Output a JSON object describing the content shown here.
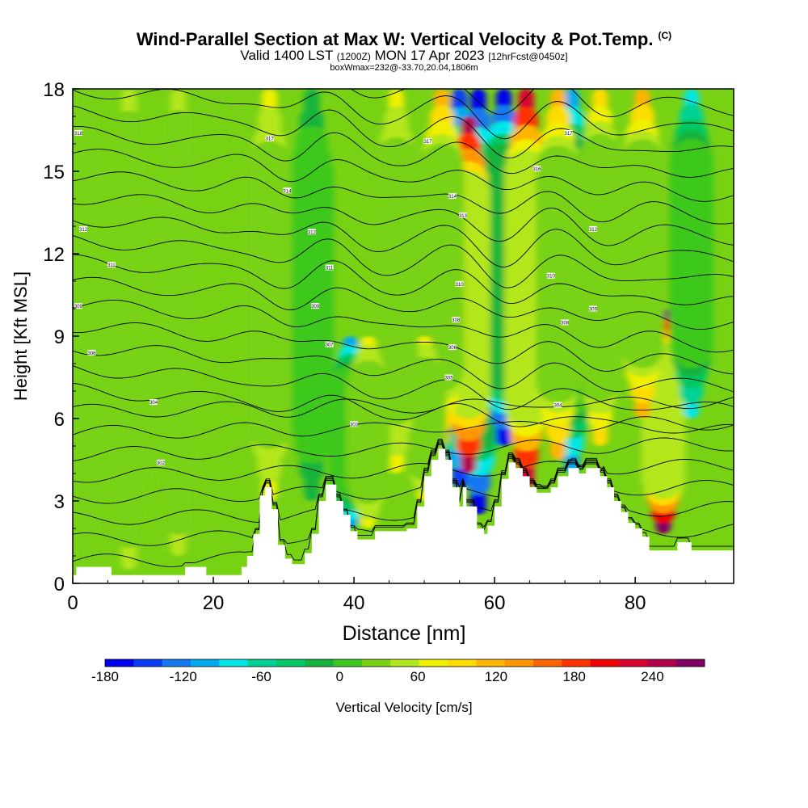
{
  "header": {
    "title": "Wind-Parallel Section at Max W: Vertical Velocity & Pot.Temp.",
    "copyright": "(C)",
    "valid_prefix": "Valid 1400 LST",
    "valid_utc": "(1200Z)",
    "valid_date": "MON 17 Apr 2023",
    "forecast": "[12hrFcst@0450z]",
    "box_info": "boxWmax=232@-33.70,20.04,1806m"
  },
  "chart_data": {
    "type": "heatmap",
    "title": "Wind-Parallel Section at Max W: Vertical Velocity & Pot.Temp.",
    "xlabel": "Distance [nm]",
    "ylabel": "Height [Kft MSL]",
    "xlim": [
      0,
      94
    ],
    "ylim": [
      0,
      18
    ],
    "xticks": [
      0,
      20,
      40,
      60,
      80
    ],
    "yticks": [
      0,
      3,
      6,
      9,
      12,
      15,
      18
    ],
    "colorbar": {
      "label": "Vertical Velocity [cm/s]",
      "min": -180,
      "max": 260,
      "step": 20,
      "tick_values": [
        -180,
        -120,
        -60,
        0,
        60,
        120,
        180,
        240
      ],
      "colors": [
        "#0000f0",
        "#0a3cf5",
        "#1478f0",
        "#00aaf0",
        "#00e6e6",
        "#00d296",
        "#00c864",
        "#14b43c",
        "#3cc81e",
        "#78d214",
        "#b4e61e",
        "#f0f000",
        "#ffdc00",
        "#ffb400",
        "#ff9600",
        "#ff6400",
        "#ff3200",
        "#f00000",
        "#dc0032",
        "#b4004b",
        "#820064"
      ]
    },
    "terrain": [
      [
        0,
        0.3
      ],
      [
        0.5,
        0.3
      ],
      [
        0.5,
        0.6
      ],
      [
        5.5,
        0.6
      ],
      [
        5.5,
        0.3
      ],
      [
        16,
        0.3
      ],
      [
        16,
        0.6
      ],
      [
        19,
        0.6
      ],
      [
        19,
        0.3
      ],
      [
        24,
        0.3
      ],
      [
        24,
        0.6
      ],
      [
        24.8,
        0.6
      ],
      [
        24.8,
        1.0
      ],
      [
        25.7,
        1.0
      ],
      [
        25.7,
        1.8
      ],
      [
        26.6,
        1.8
      ],
      [
        26.6,
        3.2
      ],
      [
        27.4,
        3.2
      ],
      [
        27.4,
        3.5
      ],
      [
        28.3,
        3.5
      ],
      [
        28.3,
        2.7
      ],
      [
        29.2,
        2.7
      ],
      [
        29.2,
        1.4
      ],
      [
        30.2,
        1.4
      ],
      [
        30.2,
        0.9
      ],
      [
        31.2,
        0.9
      ],
      [
        31.2,
        0.7
      ],
      [
        33,
        0.7
      ],
      [
        33,
        1.1
      ],
      [
        34,
        1.1
      ],
      [
        34,
        1.8
      ],
      [
        35,
        1.8
      ],
      [
        35,
        3.0
      ],
      [
        36,
        3.0
      ],
      [
        36,
        3.6
      ],
      [
        37.5,
        3.6
      ],
      [
        37.5,
        3.0
      ],
      [
        38.5,
        3.0
      ],
      [
        38.5,
        2.5
      ],
      [
        39.5,
        2.5
      ],
      [
        39.5,
        1.9
      ],
      [
        40.5,
        1.9
      ],
      [
        40.5,
        1.6
      ],
      [
        43,
        1.6
      ],
      [
        43,
        1.9
      ],
      [
        47.5,
        1.9
      ],
      [
        47.5,
        2.0
      ],
      [
        49,
        2.0
      ],
      [
        49,
        2.8
      ],
      [
        50,
        2.8
      ],
      [
        50,
        3.9
      ],
      [
        51,
        3.9
      ],
      [
        51,
        4.5
      ],
      [
        52,
        4.5
      ],
      [
        52,
        4.9
      ],
      [
        53,
        4.9
      ],
      [
        53,
        4.5
      ],
      [
        54,
        4.5
      ],
      [
        54,
        3.5
      ],
      [
        55,
        3.5
      ],
      [
        55,
        2.8
      ],
      [
        55.5,
        2.8
      ],
      [
        55.5,
        3.5
      ],
      [
        56,
        3.5
      ],
      [
        56,
        2.8
      ],
      [
        57.5,
        2.8
      ],
      [
        57.5,
        2.0
      ],
      [
        58.5,
        2.0
      ],
      [
        58.5,
        1.8
      ],
      [
        59,
        1.8
      ],
      [
        59,
        2.1
      ],
      [
        60,
        2.1
      ],
      [
        60,
        2.8
      ],
      [
        61,
        2.8
      ],
      [
        61,
        3.8
      ],
      [
        62,
        3.8
      ],
      [
        62,
        4.4
      ],
      [
        63,
        4.4
      ],
      [
        63,
        4.2
      ],
      [
        64,
        4.2
      ],
      [
        64,
        3.9
      ],
      [
        65,
        3.9
      ],
      [
        65,
        3.5
      ],
      [
        66,
        3.5
      ],
      [
        66,
        3.3
      ],
      [
        68,
        3.3
      ],
      [
        68,
        3.5
      ],
      [
        69,
        3.5
      ],
      [
        69,
        3.9
      ],
      [
        70.5,
        3.9
      ],
      [
        70.5,
        4.2
      ],
      [
        72,
        4.2
      ],
      [
        72,
        4.0
      ],
      [
        73,
        4.0
      ],
      [
        73,
        4.2
      ],
      [
        75,
        4.2
      ],
      [
        75,
        3.9
      ],
      [
        76,
        3.9
      ],
      [
        76,
        3.5
      ],
      [
        77,
        3.5
      ],
      [
        77,
        3.0
      ],
      [
        78,
        3.0
      ],
      [
        78,
        2.6
      ],
      [
        79,
        2.6
      ],
      [
        79,
        2.2
      ],
      [
        80,
        2.2
      ],
      [
        80,
        2.0
      ],
      [
        81,
        2.0
      ],
      [
        81,
        1.7
      ],
      [
        82,
        1.7
      ],
      [
        82,
        1.2
      ],
      [
        86,
        1.2
      ],
      [
        86,
        1.5
      ],
      [
        88,
        1.5
      ],
      [
        88,
        1.2
      ],
      [
        94,
        1.2
      ]
    ],
    "w_features": [
      {
        "x": 55,
        "z0": 3.5,
        "z1": 18,
        "w": -150
      },
      {
        "x": 57.7,
        "z0": 2.5,
        "z1": 18,
        "w": -180
      },
      {
        "x": 61.3,
        "z0": 5,
        "z1": 18,
        "w": -170
      },
      {
        "x": 56.3,
        "z0": 4,
        "z1": 17,
        "w": 200
      },
      {
        "x": 64.5,
        "z0": 3.5,
        "z1": 18,
        "w": 190
      },
      {
        "x": 84,
        "z0": 1.8,
        "z1": 10,
        "w": 232
      },
      {
        "x": 39.5,
        "z0": 2,
        "z1": 9,
        "w": -110
      },
      {
        "x": 71,
        "z0": 4,
        "z1": 18,
        "w": -120
      },
      {
        "x": 88,
        "z0": 6,
        "z1": 18,
        "w": -100
      },
      {
        "x": 52.5,
        "z0": 5,
        "z1": 18,
        "w": 80
      },
      {
        "x": 69,
        "z0": 4.5,
        "z1": 18,
        "w": 90
      },
      {
        "x": 81,
        "z0": 6,
        "z1": 18,
        "w": 80
      },
      {
        "x": 50,
        "z0": 3,
        "z1": 9,
        "w": 50
      },
      {
        "x": 46,
        "z0": 4,
        "z1": 18,
        "w": 40
      },
      {
        "x": 75,
        "z0": 5,
        "z1": 18,
        "w": 60
      },
      {
        "x": 34,
        "z0": 3,
        "z1": 18,
        "w": -40
      },
      {
        "x": 42,
        "z0": 2,
        "z1": 9,
        "w": 45
      },
      {
        "x": 28,
        "z0": 3,
        "z1": 18,
        "w": 50
      },
      {
        "x": 15,
        "z0": 1,
        "z1": 18,
        "w": 20
      },
      {
        "x": 8,
        "z0": 0.5,
        "z1": 18,
        "w": 20
      },
      {
        "x": 2,
        "z0": 0.5,
        "z1": 18,
        "w": 15
      }
    ],
    "theta_contour_labels": [
      {
        "x": 0.8,
        "z": 16.4,
        "text": "318"
      },
      {
        "x": 28,
        "z": 16.2,
        "text": "317"
      },
      {
        "x": 50.5,
        "z": 16.1,
        "text": "317"
      },
      {
        "x": 70.5,
        "z": 16.4,
        "text": "317"
      },
      {
        "x": 30.5,
        "z": 14.3,
        "text": "314"
      },
      {
        "x": 54,
        "z": 14.1,
        "text": "314"
      },
      {
        "x": 66,
        "z": 15.1,
        "text": "316"
      },
      {
        "x": 55.5,
        "z": 13.4,
        "text": "313"
      },
      {
        "x": 1.5,
        "z": 12.9,
        "text": "312"
      },
      {
        "x": 34,
        "z": 12.8,
        "text": "312"
      },
      {
        "x": 74,
        "z": 12.9,
        "text": "312"
      },
      {
        "x": 5.5,
        "z": 11.6,
        "text": "311"
      },
      {
        "x": 36.5,
        "z": 11.5,
        "text": "311"
      },
      {
        "x": 68,
        "z": 11.2,
        "text": "310"
      },
      {
        "x": 55,
        "z": 10.9,
        "text": "310"
      },
      {
        "x": 0.8,
        "z": 10.1,
        "text": "309"
      },
      {
        "x": 34.5,
        "z": 10.1,
        "text": "309"
      },
      {
        "x": 74,
        "z": 10.0,
        "text": "309"
      },
      {
        "x": 54.5,
        "z": 9.6,
        "text": "308"
      },
      {
        "x": 70,
        "z": 9.5,
        "text": "308"
      },
      {
        "x": 36.5,
        "z": 8.7,
        "text": "307"
      },
      {
        "x": 2.7,
        "z": 8.4,
        "text": "306"
      },
      {
        "x": 54,
        "z": 8.6,
        "text": "306"
      },
      {
        "x": 53.5,
        "z": 7.5,
        "text": "305"
      },
      {
        "x": 11.5,
        "z": 6.6,
        "text": "304"
      },
      {
        "x": 69,
        "z": 6.5,
        "text": "304"
      },
      {
        "x": 40,
        "z": 5.8,
        "text": "303"
      },
      {
        "x": 12.5,
        "z": 4.4,
        "text": "302"
      }
    ]
  }
}
